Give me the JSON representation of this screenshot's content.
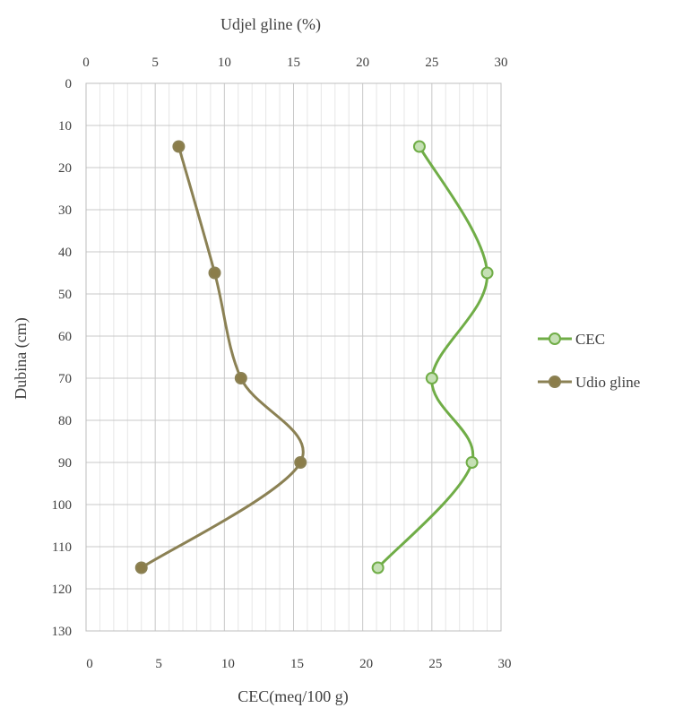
{
  "chart_data": {
    "type": "line",
    "title": "",
    "x_top_label": "Udjel gline (%)",
    "x_bottom_label": "CEC(meq/100 g)",
    "ylabel": "Dubina (cm)",
    "xlim_top": [
      0,
      30
    ],
    "xlim_bottom": [
      0,
      30
    ],
    "ylim": [
      0,
      130
    ],
    "y_inverted": true,
    "x_ticks": [
      "0",
      "5",
      "10",
      "15",
      "20",
      "25",
      "30"
    ],
    "y_ticks": [
      "0",
      "10",
      "20",
      "30",
      "40",
      "50",
      "60",
      "70",
      "80",
      "90",
      "100",
      "110",
      "120",
      "130"
    ],
    "grid": true,
    "smoothed": true,
    "legend_position": "right",
    "series": [
      {
        "name": "CEC",
        "axis": "bottom",
        "color": "#70AD47",
        "marker_fill": "#C5E0B4",
        "points": [
          {
            "x": 24.1,
            "y": 15
          },
          {
            "x": 29.0,
            "y": 45
          },
          {
            "x": 25.0,
            "y": 70
          },
          {
            "x": 27.9,
            "y": 90
          },
          {
            "x": 21.1,
            "y": 115
          }
        ]
      },
      {
        "name": "Udio gline",
        "axis": "top",
        "color": "#8B8154",
        "marker_fill": "#8B7D4A",
        "points": [
          {
            "x": 6.7,
            "y": 15
          },
          {
            "x": 9.3,
            "y": 45
          },
          {
            "x": 11.2,
            "y": 70
          },
          {
            "x": 15.5,
            "y": 90
          },
          {
            "x": 4.0,
            "y": 115
          }
        ]
      }
    ]
  }
}
